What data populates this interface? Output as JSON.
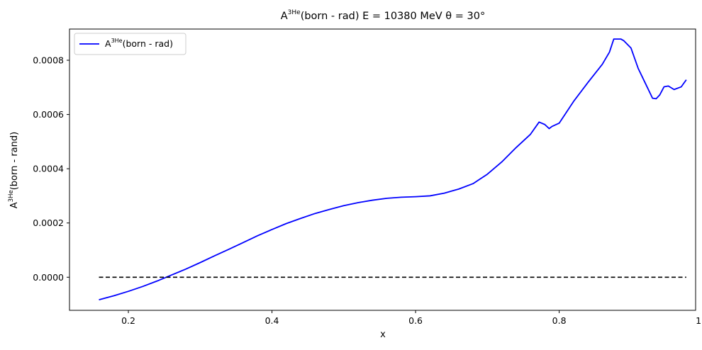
{
  "chart_data": {
    "type": "line",
    "title_prefix": "A",
    "title_sup": "3He",
    "title_rest": "(born - rad) E = 10380 MeV θ = 30°",
    "xlabel": "x",
    "ylabel_prefix": "A",
    "ylabel_sup": "3He",
    "ylabel_rest": "(born - rand)",
    "xlim": [
      0.118,
      0.99
    ],
    "ylim": [
      -0.000122,
      0.000915
    ],
    "xticks": [
      0.2,
      0.4,
      0.6,
      0.8,
      1.0
    ],
    "xtick_labels": [
      "0.2",
      "0.4",
      "0.6",
      "0.8",
      "1.0"
    ],
    "yticks": [
      0.0,
      0.0002,
      0.0004,
      0.0006,
      0.0008
    ],
    "ytick_labels": [
      "0.0000",
      "0.0002",
      "0.0004",
      "0.0006",
      "0.0008"
    ],
    "grid": false,
    "legend_position": "top-left",
    "series": [
      {
        "name_prefix": "A",
        "name_sup": "3He",
        "name_rest": "(born - rad)",
        "color": "#0000ff",
        "style": "solid",
        "x": [
          0.159,
          0.18,
          0.2,
          0.22,
          0.24,
          0.26,
          0.28,
          0.3,
          0.32,
          0.34,
          0.36,
          0.38,
          0.4,
          0.42,
          0.44,
          0.46,
          0.48,
          0.5,
          0.52,
          0.54,
          0.56,
          0.58,
          0.6,
          0.62,
          0.64,
          0.66,
          0.68,
          0.7,
          0.72,
          0.74,
          0.76,
          0.772,
          0.78,
          0.786,
          0.79,
          0.8,
          0.82,
          0.84,
          0.86,
          0.87,
          0.876,
          0.886,
          0.89,
          0.9,
          0.91,
          0.92,
          0.93,
          0.935,
          0.94,
          0.946,
          0.952,
          0.96,
          0.97,
          0.977
        ],
        "y": [
          -8.3e-05,
          -6.8e-05,
          -5.2e-05,
          -3.4e-05,
          -1.4e-05,
          8e-06,
          3e-05,
          5.4e-05,
          7.9e-05,
          0.000103,
          0.000128,
          0.000153,
          0.000176,
          0.000198,
          0.000217,
          0.000235,
          0.00025,
          0.000264,
          0.000275,
          0.000284,
          0.000291,
          0.000295,
          0.000297,
          0.0003,
          0.00031,
          0.000325,
          0.000345,
          0.00038,
          0.000425,
          0.000478,
          0.000527,
          0.000572,
          0.000563,
          0.000548,
          0.000556,
          0.000568,
          0.000648,
          0.000718,
          0.000785,
          0.00083,
          0.000878,
          0.000878,
          0.000872,
          0.000845,
          0.00077,
          0.000715,
          0.00066,
          0.000658,
          0.000672,
          0.000702,
          0.000705,
          0.000692,
          0.000702,
          0.000728
        ]
      },
      {
        "color": "#000000",
        "style": "dashed",
        "x": [
          0.159,
          0.977
        ],
        "y": [
          0.0,
          0.0
        ]
      }
    ]
  }
}
